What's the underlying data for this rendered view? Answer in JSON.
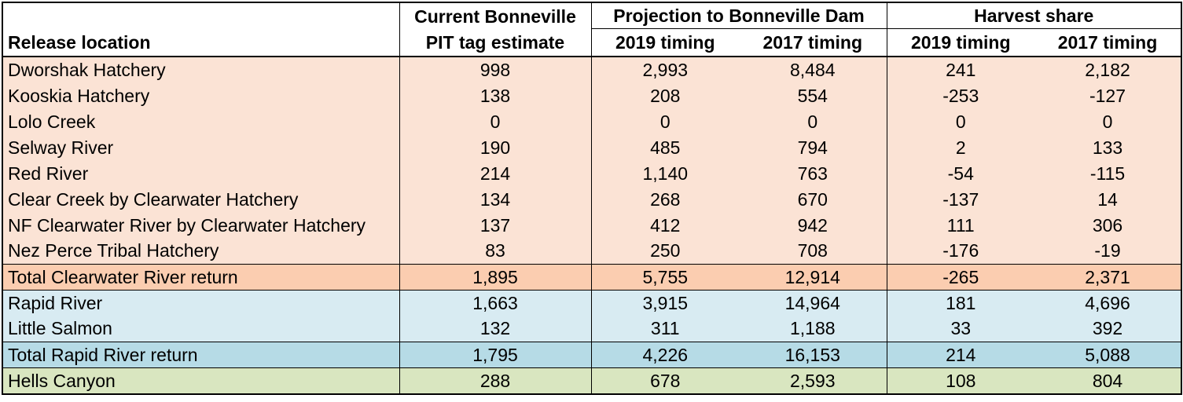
{
  "header": {
    "release_location": "Release location",
    "current_line1": "Current Bonneville",
    "current_line2": "PIT tag estimate",
    "projection_group": "Projection to Bonneville Dam",
    "harvest_group": "Harvest share",
    "t2019": "2019 timing",
    "t2017": "2017 timing"
  },
  "rows": [
    {
      "loc": "Dworshak Hatchery",
      "cur": "998",
      "p2019": "2,993",
      "p2017": "8,484",
      "h2019": "241",
      "h2017": "2,182"
    },
    {
      "loc": "Kooskia Hatchery",
      "cur": "138",
      "p2019": "208",
      "p2017": "554",
      "h2019": "-253",
      "h2017": "-127"
    },
    {
      "loc": "Lolo Creek",
      "cur": "0",
      "p2019": "0",
      "p2017": "0",
      "h2019": "0",
      "h2017": "0"
    },
    {
      "loc": "Selway River",
      "cur": "190",
      "p2019": "485",
      "p2017": "794",
      "h2019": "2",
      "h2017": "133"
    },
    {
      "loc": "Red River",
      "cur": "214",
      "p2019": "1,140",
      "p2017": "763",
      "h2019": "-54",
      "h2017": "-115"
    },
    {
      "loc": "Clear Creek by Clearwater Hatchery",
      "cur": "134",
      "p2019": "268",
      "p2017": "670",
      "h2019": "-137",
      "h2017": "14"
    },
    {
      "loc": "NF Clearwater River by Clearwater Hatchery",
      "cur": "137",
      "p2019": "412",
      "p2017": "942",
      "h2019": "111",
      "h2017": "306"
    },
    {
      "loc": "Nez Perce Tribal Hatchery",
      "cur": "83",
      "p2019": "250",
      "p2017": "708",
      "h2019": "-176",
      "h2017": "-19"
    },
    {
      "loc": "Total Clearwater River return",
      "cur": "1,895",
      "p2019": "5,755",
      "p2017": "12,914",
      "h2019": "-265",
      "h2017": "2,371"
    },
    {
      "loc": "Rapid River",
      "cur": "1,663",
      "p2019": "3,915",
      "p2017": "14,964",
      "h2019": "181",
      "h2017": "4,696"
    },
    {
      "loc": "Little Salmon",
      "cur": "132",
      "p2019": "311",
      "p2017": "1,188",
      "h2019": "33",
      "h2017": "392"
    },
    {
      "loc": "Total Rapid River return",
      "cur": "1,795",
      "p2019": "4,226",
      "p2017": "16,153",
      "h2019": "214",
      "h2017": "5,088"
    },
    {
      "loc": "Hells Canyon",
      "cur": "288",
      "p2019": "678",
      "p2017": "2,593",
      "h2019": "108",
      "h2017": "804"
    }
  ],
  "colors": {
    "clearwater": "#fbe3d5",
    "clearwater_total": "#fbcdb0",
    "rapid": "#d8ebf2",
    "rapid_total": "#b6dbe6",
    "hells": "#d9e6c0"
  }
}
